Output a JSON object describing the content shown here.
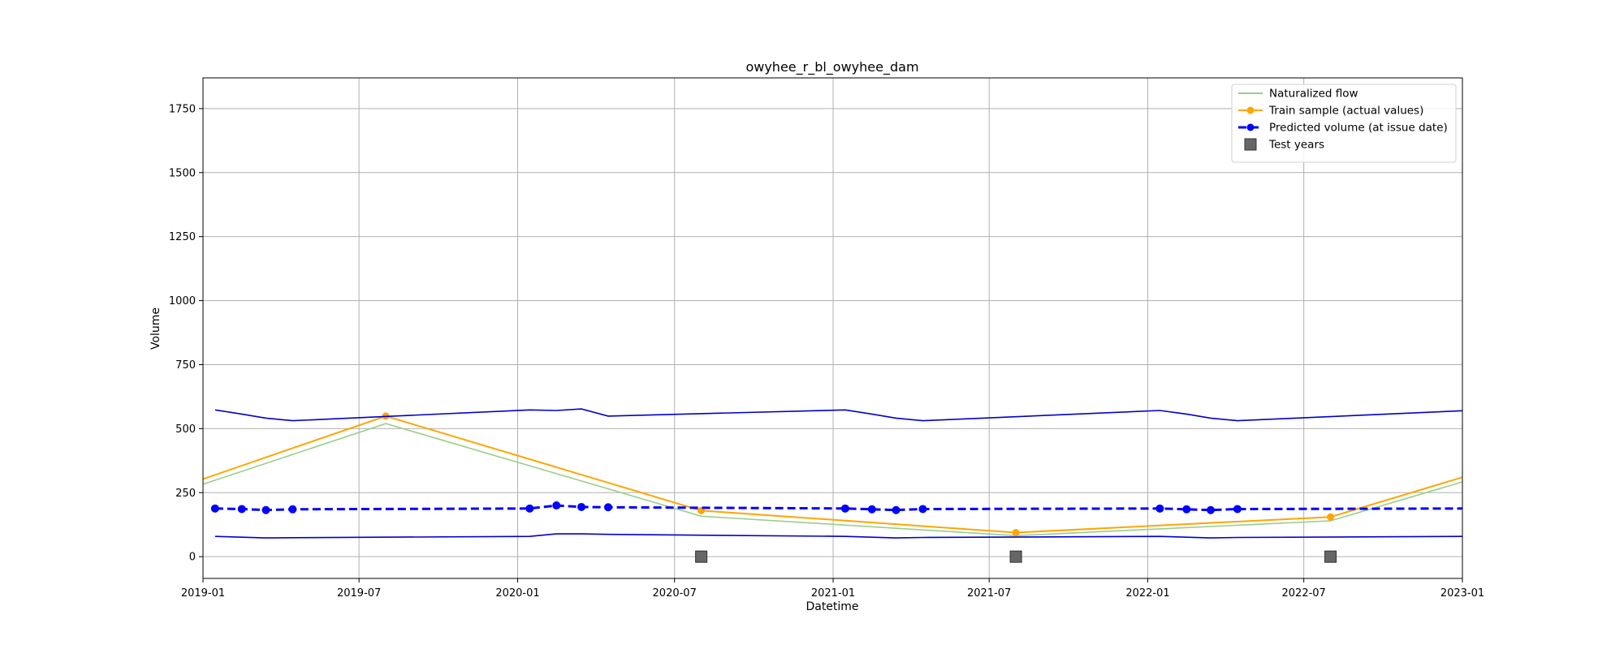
{
  "chart_data": {
    "type": "line",
    "title": "owyhee_r_bl_owyhee_dam",
    "xlabel": "Datetime",
    "ylabel": "Volume",
    "xlim": [
      "2019-01-01",
      "2023-01-01"
    ],
    "ylim": [
      -85,
      1870
    ],
    "x_ticks": [
      {
        "date": "2019-01-01",
        "label": "2019-01"
      },
      {
        "date": "2019-07-01",
        "label": "2019-07"
      },
      {
        "date": "2020-01-01",
        "label": "2020-01"
      },
      {
        "date": "2020-07-01",
        "label": "2020-07"
      },
      {
        "date": "2021-01-01",
        "label": "2021-01"
      },
      {
        "date": "2021-07-01",
        "label": "2021-07"
      },
      {
        "date": "2022-01-01",
        "label": "2022-01"
      },
      {
        "date": "2022-07-01",
        "label": "2022-07"
      },
      {
        "date": "2023-01-01",
        "label": "2023-01"
      }
    ],
    "y_ticks": [
      0,
      250,
      500,
      750,
      1000,
      1250,
      1500,
      1750
    ],
    "grid": true,
    "legend_position": "top-right",
    "series": [
      {
        "name": "Naturalized flow",
        "kind": "line",
        "color": "#9acd8a",
        "points": [
          [
            "2019-01-01",
            283
          ],
          [
            "2019-08-01",
            520
          ],
          [
            "2020-08-01",
            158
          ],
          [
            "2021-08-01",
            82
          ],
          [
            "2022-08-01",
            140
          ],
          [
            "2023-01-01",
            292
          ]
        ]
      },
      {
        "name": "Train sample (actual values)",
        "kind": "line-marker",
        "color": "#ffa500",
        "points": [
          [
            "2019-01-01",
            303
          ],
          [
            "2019-08-01",
            549
          ],
          [
            "2020-08-01",
            180
          ],
          [
            "2021-08-01",
            94
          ],
          [
            "2022-08-01",
            155
          ],
          [
            "2023-01-01",
            310
          ]
        ],
        "marker_indices": [
          1,
          2,
          3,
          4
        ]
      },
      {
        "name": "Predicted volume (at issue date)",
        "kind": "dashed-marker",
        "color": "#0000ff",
        "points": [
          [
            "2019-01-15",
            188
          ],
          [
            "2019-02-15",
            186
          ],
          [
            "2019-03-15",
            182
          ],
          [
            "2019-04-15",
            185
          ],
          [
            "2020-01-15",
            188
          ],
          [
            "2020-02-15",
            200
          ],
          [
            "2020-03-15",
            194
          ],
          [
            "2020-04-15",
            193
          ],
          [
            "2021-01-15",
            188
          ],
          [
            "2021-02-15",
            185
          ],
          [
            "2021-03-15",
            182
          ],
          [
            "2021-04-15",
            186
          ],
          [
            "2022-01-15",
            188
          ],
          [
            "2022-02-15",
            185
          ],
          [
            "2022-03-15",
            182
          ],
          [
            "2022-04-15",
            186
          ],
          [
            "2023-01-01",
            188
          ]
        ],
        "marker_indices": [
          0,
          1,
          2,
          3,
          4,
          5,
          6,
          7,
          8,
          9,
          10,
          11,
          12,
          13,
          14,
          15
        ]
      },
      {
        "kind": "line",
        "color": "#0000cd",
        "points": [
          [
            "2019-01-15",
            573
          ],
          [
            "2019-02-15",
            557
          ],
          [
            "2019-03-15",
            541
          ],
          [
            "2019-04-15",
            531
          ],
          [
            "2020-01-15",
            573
          ],
          [
            "2020-02-15",
            571
          ],
          [
            "2020-03-15",
            577
          ],
          [
            "2020-04-15",
            549
          ],
          [
            "2021-01-15",
            573
          ],
          [
            "2021-02-15",
            557
          ],
          [
            "2021-03-15",
            541
          ],
          [
            "2021-04-15",
            531
          ],
          [
            "2022-01-15",
            571
          ],
          [
            "2022-02-15",
            557
          ],
          [
            "2022-03-15",
            541
          ],
          [
            "2022-04-15",
            531
          ],
          [
            "2023-01-01",
            570
          ]
        ]
      },
      {
        "kind": "line",
        "color": "#0000cd",
        "points": [
          [
            "2019-01-15",
            79
          ],
          [
            "2019-02-15",
            76
          ],
          [
            "2019-03-15",
            73
          ],
          [
            "2019-04-15",
            74
          ],
          [
            "2020-01-15",
            79
          ],
          [
            "2020-02-15",
            89
          ],
          [
            "2020-03-15",
            89
          ],
          [
            "2020-04-15",
            87
          ],
          [
            "2021-01-15",
            79
          ],
          [
            "2021-02-15",
            76
          ],
          [
            "2021-03-15",
            73
          ],
          [
            "2021-04-15",
            75
          ],
          [
            "2022-01-15",
            79
          ],
          [
            "2022-02-15",
            76
          ],
          [
            "2022-03-15",
            73
          ],
          [
            "2022-04-15",
            75
          ],
          [
            "2023-01-01",
            79
          ]
        ]
      },
      {
        "name": "Test years",
        "kind": "square-marker",
        "color": "#666666",
        "points": [
          [
            "2020-08-01",
            0
          ],
          [
            "2021-08-01",
            0
          ],
          [
            "2022-08-01",
            0
          ]
        ]
      }
    ]
  }
}
